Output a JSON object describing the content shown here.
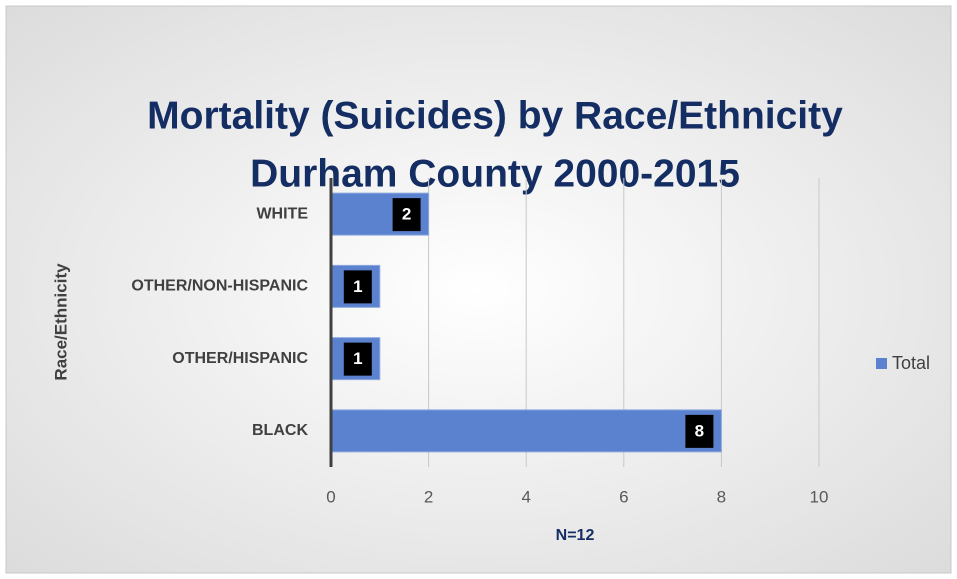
{
  "chart_data": {
    "type": "bar",
    "orientation": "horizontal",
    "title": [
      "Mortality (Suicides) by Race/Ethnicity",
      "Durham County 2000-2015"
    ],
    "x_label": "N=12",
    "y_label": "Race/Ethnicity",
    "categories": [
      "WHITE",
      "OTHER/NON-HISPANIC",
      "OTHER/HISPANIC",
      "BLACK"
    ],
    "series": [
      {
        "name": "Total",
        "color": "#5b82cf",
        "values": [
          2,
          1,
          1,
          8
        ]
      }
    ],
    "xlim": [
      0,
      10
    ],
    "xticks": [
      0,
      2,
      4,
      6,
      8,
      10
    ],
    "grid": true,
    "legend": "right"
  }
}
